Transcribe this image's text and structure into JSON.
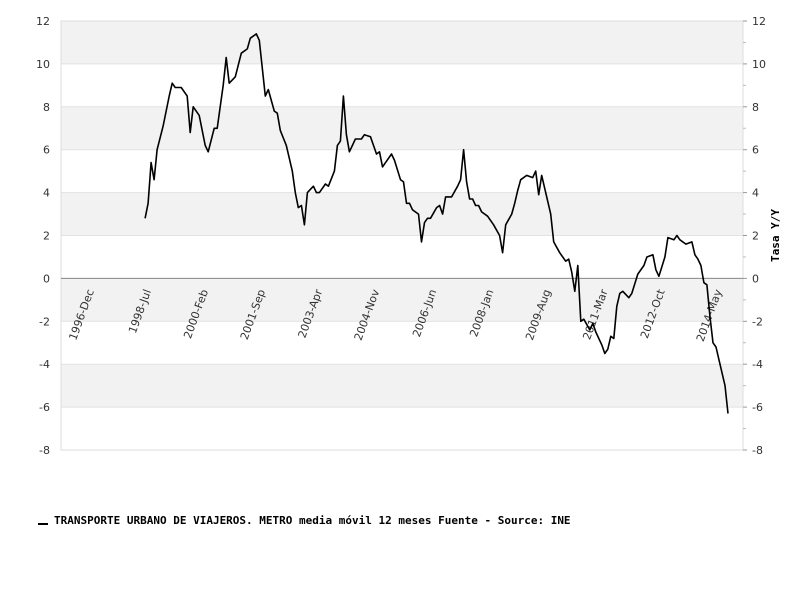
{
  "chart_data": {
    "type": "line",
    "ylabel_right": "Tasa Y/Y",
    "ylim": [
      -8,
      12
    ],
    "yticks": [
      12,
      10,
      8,
      6,
      4,
      2,
      0,
      -2,
      -4,
      -6,
      -8
    ],
    "yticks_text": [
      "12",
      "10",
      "8",
      "6",
      "4",
      "2",
      "0",
      "-2",
      "-4",
      "-6",
      "-8"
    ],
    "xlim": [
      "1996-01",
      "2014-12"
    ],
    "xtick_positions": [
      "1996-12",
      "1998-07",
      "2000-02",
      "2001-09",
      "2003-04",
      "2004-11",
      "2006-06",
      "2008-01",
      "2009-08",
      "2011-03",
      "2012-10",
      "2014-05"
    ],
    "xtick_labels": [
      "1996-Dec",
      "1998-Jul",
      "2000-Feb",
      "2001-Sep",
      "2003-Apr",
      "2004-Nov",
      "2006-Jun",
      "2008-Jan",
      "2009-Aug",
      "2011-Mar",
      "2012-Oct",
      "2014-May"
    ],
    "grid": true,
    "band_color": "#f2f2f2",
    "line_color": "#000000",
    "zero_line_color": "#888888",
    "series": [
      {
        "name": "TRANSPORTE URBANO DE VIAJEROS. METRO media móvil 12 meses",
        "points": [
          [
            "1998-05",
            2.8
          ],
          [
            "1998-06",
            3.5
          ],
          [
            "1998-07",
            5.4
          ],
          [
            "1998-08",
            4.6
          ],
          [
            "1998-09",
            6.0
          ],
          [
            "1998-11",
            7.1
          ],
          [
            "1999-01",
            8.5
          ],
          [
            "1999-02",
            9.1
          ],
          [
            "1999-03",
            8.9
          ],
          [
            "1999-05",
            8.9
          ],
          [
            "1999-07",
            8.5
          ],
          [
            "1999-08",
            6.8
          ],
          [
            "1999-09",
            8.0
          ],
          [
            "1999-11",
            7.6
          ],
          [
            "2000-01",
            6.2
          ],
          [
            "2000-02",
            5.9
          ],
          [
            "2000-04",
            7.0
          ],
          [
            "2000-05",
            7.0
          ],
          [
            "2000-07",
            9.0
          ],
          [
            "2000-08",
            10.3
          ],
          [
            "2000-09",
            9.1
          ],
          [
            "2000-11",
            9.4
          ],
          [
            "2001-01",
            10.5
          ],
          [
            "2001-03",
            10.7
          ],
          [
            "2001-04",
            11.2
          ],
          [
            "2001-06",
            11.4
          ],
          [
            "2001-07",
            11.1
          ],
          [
            "2001-09",
            8.5
          ],
          [
            "2001-10",
            8.8
          ],
          [
            "2001-12",
            7.8
          ],
          [
            "2002-01",
            7.7
          ],
          [
            "2002-02",
            6.9
          ],
          [
            "2002-04",
            6.2
          ],
          [
            "2002-06",
            5.0
          ],
          [
            "2002-07",
            4.0
          ],
          [
            "2002-08",
            3.3
          ],
          [
            "2002-09",
            3.4
          ],
          [
            "2002-10",
            2.5
          ],
          [
            "2002-11",
            4.0
          ],
          [
            "2003-01",
            4.3
          ],
          [
            "2003-02",
            4.0
          ],
          [
            "2003-03",
            4.0
          ],
          [
            "2003-05",
            4.4
          ],
          [
            "2003-06",
            4.3
          ],
          [
            "2003-08",
            5.0
          ],
          [
            "2003-09",
            6.2
          ],
          [
            "2003-10",
            6.4
          ],
          [
            "2003-11",
            8.5
          ],
          [
            "2003-12",
            6.7
          ],
          [
            "2004-01",
            5.9
          ],
          [
            "2004-03",
            6.5
          ],
          [
            "2004-05",
            6.5
          ],
          [
            "2004-06",
            6.7
          ],
          [
            "2004-08",
            6.6
          ],
          [
            "2004-10",
            5.8
          ],
          [
            "2004-11",
            5.9
          ],
          [
            "2004-12",
            5.2
          ],
          [
            "2005-02",
            5.6
          ],
          [
            "2005-03",
            5.8
          ],
          [
            "2005-04",
            5.5
          ],
          [
            "2005-06",
            4.6
          ],
          [
            "2005-07",
            4.5
          ],
          [
            "2005-08",
            3.5
          ],
          [
            "2005-09",
            3.5
          ],
          [
            "2005-10",
            3.2
          ],
          [
            "2005-12",
            3.0
          ],
          [
            "2006-01",
            1.7
          ],
          [
            "2006-02",
            2.6
          ],
          [
            "2006-03",
            2.8
          ],
          [
            "2006-04",
            2.8
          ],
          [
            "2006-06",
            3.3
          ],
          [
            "2006-07",
            3.4
          ],
          [
            "2006-08",
            3.0
          ],
          [
            "2006-09",
            3.8
          ],
          [
            "2006-11",
            3.8
          ],
          [
            "2007-01",
            4.3
          ],
          [
            "2007-02",
            4.6
          ],
          [
            "2007-03",
            6.0
          ],
          [
            "2007-04",
            4.5
          ],
          [
            "2007-05",
            3.7
          ],
          [
            "2007-06",
            3.7
          ],
          [
            "2007-07",
            3.4
          ],
          [
            "2007-08",
            3.4
          ],
          [
            "2007-09",
            3.1
          ],
          [
            "2007-11",
            2.9
          ],
          [
            "2008-01",
            2.5
          ],
          [
            "2008-03",
            2.0
          ],
          [
            "2008-04",
            1.2
          ],
          [
            "2008-05",
            2.5
          ],
          [
            "2008-07",
            3.0
          ],
          [
            "2008-08",
            3.5
          ],
          [
            "2008-09",
            4.1
          ],
          [
            "2008-10",
            4.6
          ],
          [
            "2008-12",
            4.8
          ],
          [
            "2009-02",
            4.7
          ],
          [
            "2009-03",
            5.0
          ],
          [
            "2009-04",
            3.9
          ],
          [
            "2009-05",
            4.8
          ],
          [
            "2009-07",
            3.6
          ],
          [
            "2009-08",
            3.0
          ],
          [
            "2009-09",
            1.7
          ],
          [
            "2009-11",
            1.2
          ],
          [
            "2010-01",
            0.8
          ],
          [
            "2010-02",
            0.9
          ],
          [
            "2010-03",
            0.3
          ],
          [
            "2010-04",
            -0.6
          ],
          [
            "2010-05",
            0.6
          ],
          [
            "2010-06",
            -2.0
          ],
          [
            "2010-07",
            -1.9
          ],
          [
            "2010-09",
            -2.4
          ],
          [
            "2010-10",
            -2.1
          ],
          [
            "2010-11",
            -2.5
          ],
          [
            "2011-01",
            -3.1
          ],
          [
            "2011-02",
            -3.5
          ],
          [
            "2011-03",
            -3.3
          ],
          [
            "2011-04",
            -2.7
          ],
          [
            "2011-05",
            -2.8
          ],
          [
            "2011-06",
            -1.3
          ],
          [
            "2011-07",
            -0.7
          ],
          [
            "2011-08",
            -0.6
          ],
          [
            "2011-10",
            -0.9
          ],
          [
            "2011-11",
            -0.7
          ],
          [
            "2012-01",
            0.2
          ],
          [
            "2012-03",
            0.6
          ],
          [
            "2012-04",
            1.0
          ],
          [
            "2012-06",
            1.1
          ],
          [
            "2012-07",
            0.4
          ],
          [
            "2012-08",
            0.1
          ],
          [
            "2012-10",
            1.0
          ],
          [
            "2012-11",
            1.9
          ],
          [
            "2013-01",
            1.8
          ],
          [
            "2013-02",
            2.0
          ],
          [
            "2013-03",
            1.8
          ],
          [
            "2013-05",
            1.6
          ],
          [
            "2013-07",
            1.7
          ],
          [
            "2013-08",
            1.1
          ],
          [
            "2013-09",
            0.9
          ],
          [
            "2013-10",
            0.6
          ],
          [
            "2013-11",
            -0.2
          ],
          [
            "2013-12",
            -0.3
          ],
          [
            "2014-01",
            -1.8
          ],
          [
            "2014-02",
            -3.0
          ],
          [
            "2014-03",
            -3.2
          ],
          [
            "2014-04",
            -3.8
          ],
          [
            "2014-06",
            -5.0
          ],
          [
            "2014-07",
            -6.3
          ]
        ]
      }
    ],
    "legend_text": "TRANSPORTE URBANO DE VIAJEROS. METRO media móvil 12 meses  Fuente - Source: INE",
    "legend_position": "bottom-left"
  }
}
